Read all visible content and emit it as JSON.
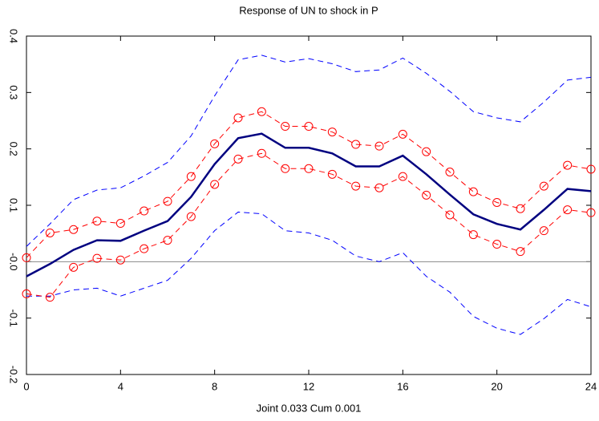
{
  "chart_data": {
    "type": "line",
    "title": "Response of UN to shock in P",
    "x_label": "Joint 0.033 Cum 0.001",
    "x": [
      0,
      1,
      2,
      3,
      4,
      5,
      6,
      7,
      8,
      9,
      10,
      11,
      12,
      13,
      14,
      15,
      16,
      17,
      18,
      19,
      20,
      21,
      22,
      23,
      24
    ],
    "xlim": [
      0,
      24
    ],
    "xticks": [
      0,
      4,
      8,
      12,
      16,
      20,
      24
    ],
    "ylim": [
      -0.2,
      0.4
    ],
    "yticks": [
      0.4,
      0.3,
      0.2,
      0.1,
      {
        "value": 0,
        "label": "-0.0"
      },
      -0.1,
      -0.2
    ],
    "reference_line": 0,
    "series": [
      {
        "color": "#0000ff",
        "dash": true,
        "marker": false,
        "width": 1,
        "values": [
          0.027,
          0.067,
          0.11,
          0.127,
          0.131,
          0.152,
          0.176,
          0.223,
          0.294,
          0.358,
          0.366,
          0.354,
          0.36,
          0.351,
          0.337,
          0.34,
          0.361,
          0.334,
          0.302,
          0.266,
          0.255,
          0.248,
          0.283,
          0.322,
          0.327
        ]
      },
      {
        "color": "#0000ff",
        "dash": true,
        "marker": false,
        "width": 1,
        "values": [
          -0.061,
          -0.061,
          -0.05,
          -0.047,
          -0.061,
          -0.047,
          -0.033,
          0.006,
          0.055,
          0.088,
          0.085,
          0.055,
          0.051,
          0.038,
          0.01,
          0.0,
          0.016,
          -0.026,
          -0.054,
          -0.097,
          -0.118,
          -0.129,
          -0.101,
          -0.067,
          -0.08
        ]
      },
      {
        "color": "#ff0000",
        "dash": true,
        "marker": true,
        "width": 1,
        "values": [
          0.007,
          0.051,
          0.057,
          0.072,
          0.068,
          0.09,
          0.107,
          0.151,
          0.209,
          0.255,
          0.266,
          0.24,
          0.24,
          0.23,
          0.208,
          0.205,
          0.226,
          0.195,
          0.159,
          0.124,
          0.105,
          0.094,
          0.134,
          0.171,
          0.164
        ]
      },
      {
        "color": "#ff0000",
        "dash": true,
        "marker": true,
        "width": 1,
        "values": [
          -0.057,
          -0.063,
          -0.01,
          0.006,
          0.003,
          0.023,
          0.038,
          0.08,
          0.137,
          0.182,
          0.192,
          0.165,
          0.165,
          0.155,
          0.134,
          0.131,
          0.151,
          0.118,
          0.083,
          0.048,
          0.031,
          0.018,
          0.055,
          0.092,
          0.087
        ]
      },
      {
        "color": "#000080",
        "dash": false,
        "marker": false,
        "width": 2.5,
        "values": [
          -0.026,
          -0.004,
          0.021,
          0.038,
          0.037,
          0.055,
          0.072,
          0.115,
          0.173,
          0.219,
          0.227,
          0.202,
          0.202,
          0.192,
          0.169,
          0.169,
          0.188,
          0.155,
          0.119,
          0.084,
          0.067,
          0.057,
          0.092,
          0.129,
          0.125
        ]
      }
    ]
  }
}
